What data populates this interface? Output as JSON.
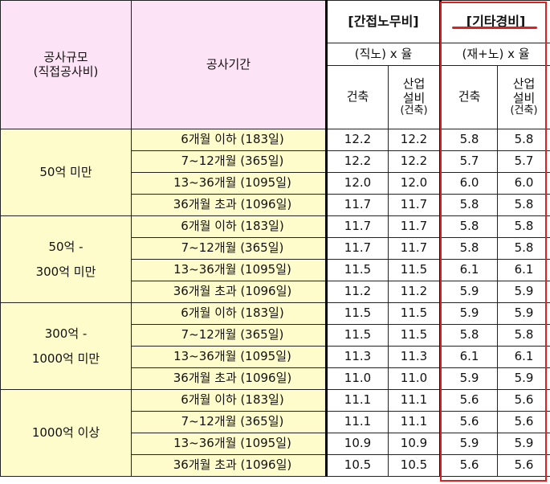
{
  "header": {
    "scale_title": "공사규모",
    "scale_sub": "(직접공사비)",
    "period_title": "공사기간",
    "indirect": {
      "title": "[간접노무비]",
      "formula": "(직노) x 율",
      "col_building": "건축",
      "col_plant": [
        "산업",
        "설비",
        "(건축)"
      ]
    },
    "other": {
      "title": "[기타경비]",
      "formula": "(재+노) x 율",
      "col_building": "건축",
      "col_plant": [
        "산업",
        "설비",
        "(건축)"
      ]
    }
  },
  "groups": [
    {
      "label": [
        "50억 미만"
      ],
      "rows": [
        {
          "period": "6개월 이하 (183일)",
          "ind_b": "12.2",
          "ind_p": "12.2",
          "oth_b": "5.8",
          "oth_p": "5.8"
        },
        {
          "period": "7~12개월 (365일)",
          "ind_b": "12.2",
          "ind_p": "12.2",
          "oth_b": "5.7",
          "oth_p": "5.7"
        },
        {
          "period": "13~36개월 (1095일)",
          "ind_b": "12.0",
          "ind_p": "12.0",
          "oth_b": "6.0",
          "oth_p": "6.0"
        },
        {
          "period": "36개월 초과 (1096일)",
          "ind_b": "11.7",
          "ind_p": "11.7",
          "oth_b": "5.8",
          "oth_p": "5.8"
        }
      ]
    },
    {
      "label": [
        "50억 -",
        "300억 미만"
      ],
      "rows": [
        {
          "period": "6개월 이하 (183일)",
          "ind_b": "11.7",
          "ind_p": "11.7",
          "oth_b": "5.8",
          "oth_p": "5.8"
        },
        {
          "period": "7~12개월 (365일)",
          "ind_b": "11.7",
          "ind_p": "11.7",
          "oth_b": "5.8",
          "oth_p": "5.8"
        },
        {
          "period": "13~36개월 (1095일)",
          "ind_b": "11.5",
          "ind_p": "11.5",
          "oth_b": "6.1",
          "oth_p": "6.1"
        },
        {
          "period": "36개월 초과 (1096일)",
          "ind_b": "11.2",
          "ind_p": "11.2",
          "oth_b": "5.9",
          "oth_p": "5.9"
        }
      ]
    },
    {
      "label": [
        "300억 -",
        "1000억 미만"
      ],
      "rows": [
        {
          "period": "6개월 이하 (183일)",
          "ind_b": "11.5",
          "ind_p": "11.5",
          "oth_b": "5.9",
          "oth_p": "5.9"
        },
        {
          "period": "7~12개월 (365일)",
          "ind_b": "11.5",
          "ind_p": "11.5",
          "oth_b": "5.8",
          "oth_p": "5.8"
        },
        {
          "period": "13~36개월 (1095일)",
          "ind_b": "11.3",
          "ind_p": "11.3",
          "oth_b": "6.1",
          "oth_p": "6.1"
        },
        {
          "period": "36개월 초과 (1096일)",
          "ind_b": "11.0",
          "ind_p": "11.0",
          "oth_b": "5.9",
          "oth_p": "5.9"
        }
      ]
    },
    {
      "label": [
        "1000억 이상"
      ],
      "rows": [
        {
          "period": "6개월 이하 (183일)",
          "ind_b": "11.1",
          "ind_p": "11.1",
          "oth_b": "5.6",
          "oth_p": "5.6"
        },
        {
          "period": "7~12개월 (365일)",
          "ind_b": "11.1",
          "ind_p": "11.1",
          "oth_b": "5.6",
          "oth_p": "5.6"
        },
        {
          "period": "13~36개월 (1095일)",
          "ind_b": "10.9",
          "ind_p": "10.9",
          "oth_b": "5.9",
          "oth_p": "5.9"
        },
        {
          "period": "36개월 초과 (1096일)",
          "ind_b": "10.5",
          "ind_p": "10.5",
          "oth_b": "5.6",
          "oth_p": "5.6"
        }
      ]
    }
  ],
  "colors": {
    "header_bg": "#fde3f6",
    "row_bg": "#fffccc",
    "highlight": "#e02020"
  }
}
